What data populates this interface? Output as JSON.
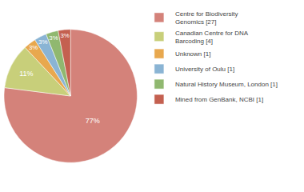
{
  "chart_data": {
    "type": "pie",
    "categories": [
      "Centre for Biodiversity\nGenomics [27]",
      "Canadian Centre for DNA\nBarcoding [4]",
      "Unknown [1]",
      "University of Oulu [1]",
      "Natural History Museum, London [1]",
      "Mined from GenBank, NCBI [1]"
    ],
    "values": [
      77,
      11,
      3,
      3,
      3,
      3
    ],
    "value_labels": [
      "77%",
      "11%",
      "3%",
      "3%",
      "3%",
      "3%"
    ],
    "data_labels": true,
    "colors": [
      "#d4827a",
      "#c8cf7a",
      "#e8a84e",
      "#8ab4d4",
      "#90b870",
      "#c46050"
    ],
    "legend": "upper right"
  }
}
